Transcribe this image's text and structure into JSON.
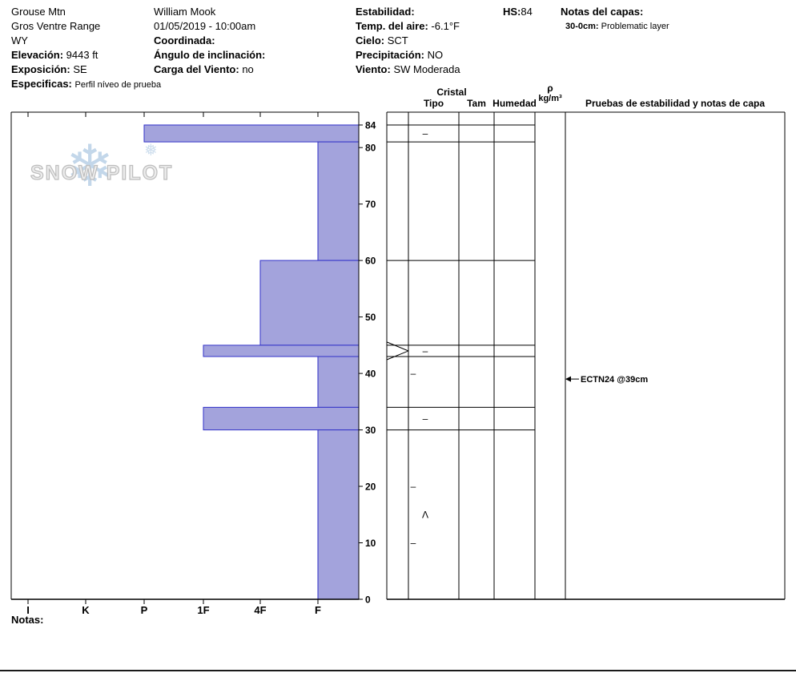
{
  "header": {
    "location": {
      "site": "Grouse Mtn",
      "range": "Gros Ventre Range",
      "state": "WY",
      "elevation_label": "Elevación:",
      "elevation_value": "9443 ft",
      "aspect_label": "Exposición:",
      "aspect_value": "SE",
      "specifics_label": "Especificas:",
      "specifics_value": "Perfil níveo de prueba"
    },
    "observation": {
      "observer": "William Mook",
      "datetime": "01/05/2019 - 10:00am",
      "coordinates_label": "Coordinada:",
      "slope_angle_label": "Ángulo de inclinación:",
      "wind_loading_label": "Carga del Viento:",
      "wind_loading_value": "no"
    },
    "conditions": {
      "stability_label": "Estabilidad:",
      "air_temp_label": "Temp. del aire:",
      "air_temp_value": "-6.1°F",
      "sky_label": "Cielo:",
      "sky_value": "SCT",
      "precip_label": "Precipitación:",
      "precip_value": "NO",
      "wind_label": "Viento:",
      "wind_value": "SW Moderada"
    },
    "hs_label": "HS:",
    "hs_value": "84",
    "layer_notes": {
      "label": "Notas del capas:",
      "entry_depth": "30-0cm:",
      "entry_text": "Problematic layer"
    }
  },
  "logo": {
    "text": "SNOW PILOT",
    "snowflake": "❄",
    "snowflake_small": "❅"
  },
  "table_headers": {
    "cristal": "Cristal",
    "tipo": "Tipo",
    "tam": "Tam",
    "humedad": "Humedad",
    "rho": "ρ",
    "rho_units": "kg/m³",
    "tests": "Pruebas de estabilidad y notas de capa"
  },
  "footer": {
    "notes_label": "Notas:"
  },
  "chart_data": {
    "type": "bar",
    "title": "Perfil de dureza de nieve (snow hardness profile)",
    "orientation": "horizontal-bars-by-depth",
    "hardness_axis": [
      "I",
      "K",
      "P",
      "1F",
      "4F",
      "F"
    ],
    "depth_ticks": [
      84,
      80,
      70,
      60,
      50,
      40,
      30,
      20,
      10,
      0
    ],
    "depth_range_cm": [
      0,
      84
    ],
    "hs_cm": 84,
    "layers": [
      {
        "top_cm": 84,
        "bottom_cm": 81,
        "hardness": "P"
      },
      {
        "top_cm": 81,
        "bottom_cm": 60,
        "hardness": "F"
      },
      {
        "top_cm": 60,
        "bottom_cm": 45,
        "hardness": "4F"
      },
      {
        "top_cm": 45,
        "bottom_cm": 43,
        "hardness": "1F"
      },
      {
        "top_cm": 43,
        "bottom_cm": 34,
        "hardness": "F"
      },
      {
        "top_cm": 34,
        "bottom_cm": 30,
        "hardness": "1F"
      },
      {
        "top_cm": 30,
        "bottom_cm": 0,
        "hardness": "F"
      }
    ],
    "grain_symbols": [
      {
        "depth_cm": 82.5,
        "symbol": "–",
        "col": "mid"
      },
      {
        "depth_cm": 44,
        "symbol": "–",
        "col": "mid"
      },
      {
        "depth_cm": 40,
        "symbol": "–",
        "col": "edge"
      },
      {
        "depth_cm": 32,
        "symbol": "–",
        "col": "mid"
      },
      {
        "depth_cm": 20,
        "symbol": "–",
        "col": "edge"
      },
      {
        "depth_cm": 15,
        "symbol": "Λ",
        "col": "mid"
      },
      {
        "depth_cm": 10,
        "symbol": "–",
        "col": "edge"
      }
    ],
    "pinch_marker": {
      "top_cm": 45,
      "bottom_cm": 43
    },
    "stability_tests": [
      {
        "depth_cm": 39,
        "label": "ECTN24 @39cm"
      }
    ],
    "colors": {
      "bar_fill": "#a3a3dc",
      "bar_stroke": "#3232c8",
      "line": "#000000"
    }
  }
}
